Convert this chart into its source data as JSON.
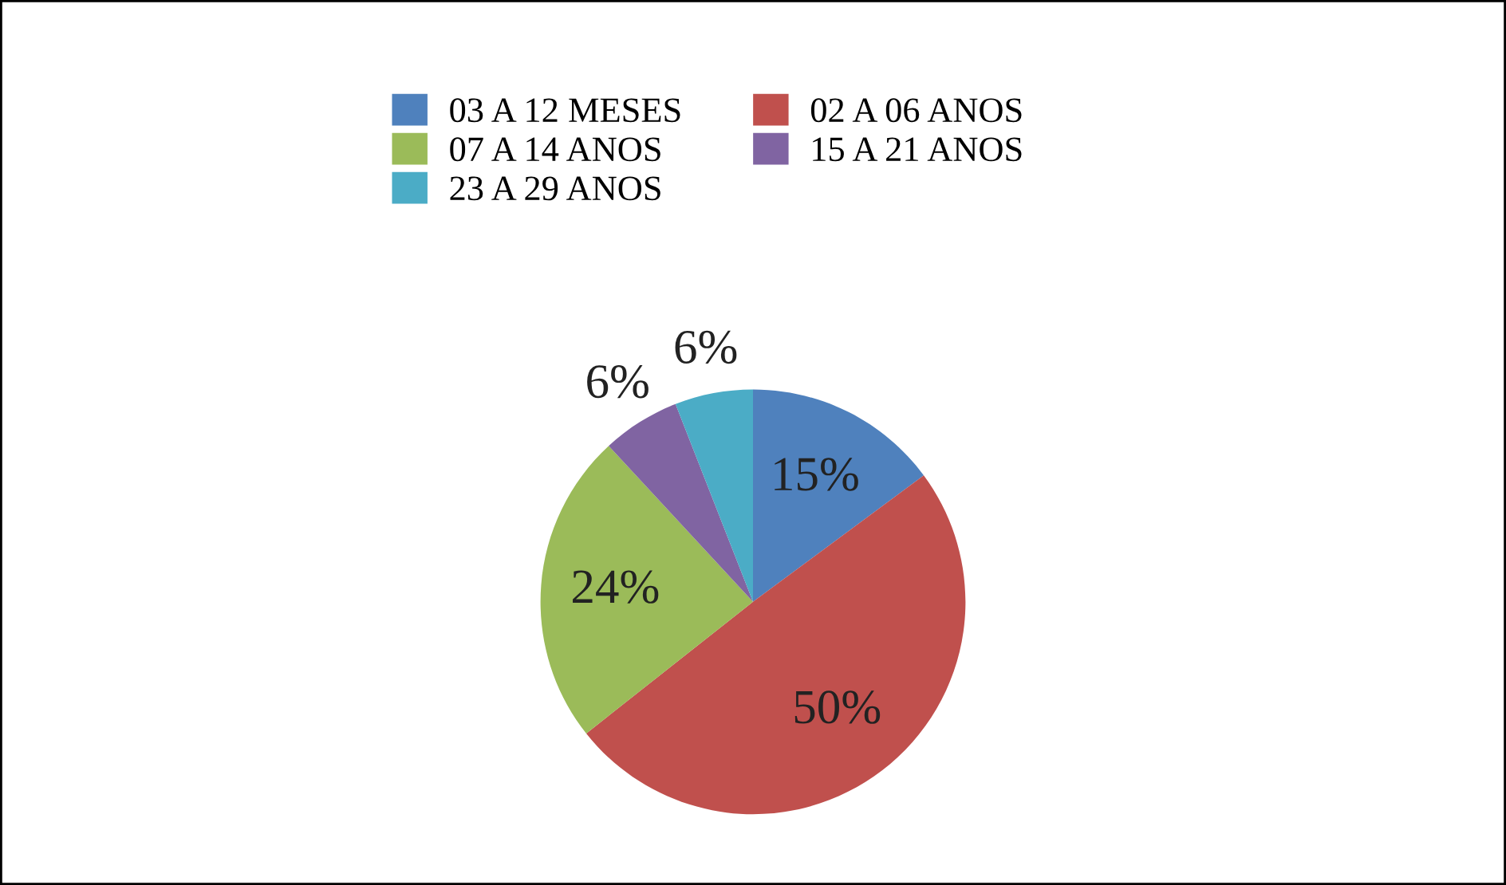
{
  "chart_data": {
    "type": "pie",
    "categories": [
      "03 A 12 MESES",
      "02 A 06 ANOS",
      "07 A 14 ANOS",
      "15 A 21 ANOS",
      "23 A 29 ANOS"
    ],
    "values": [
      15,
      50,
      24,
      6,
      6
    ],
    "value_labels": [
      "15%",
      "50%",
      "24%",
      "6%",
      "6%"
    ],
    "colors": [
      "#4f81bd",
      "#c0504d",
      "#9bbb59",
      "#8064a2",
      "#4bacc6"
    ],
    "legend": "top"
  }
}
